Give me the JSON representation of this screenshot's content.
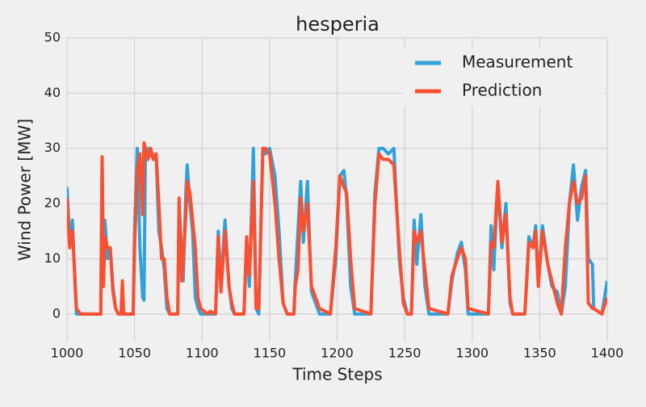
{
  "chart_data": {
    "type": "line",
    "title": "hesperia",
    "x_label": "Time Steps",
    "y_label": "Wind Power [MW]",
    "x": [
      1000,
      1002,
      1004,
      1006,
      1007,
      1010,
      1025,
      1026,
      1027,
      1028,
      1030,
      1032,
      1034,
      1036,
      1038,
      1040,
      1041,
      1042,
      1049,
      1050,
      1052,
      1054,
      1056,
      1057,
      1058,
      1060,
      1062,
      1064,
      1066,
      1068,
      1070,
      1072,
      1074,
      1076,
      1082,
      1083,
      1085,
      1086,
      1088,
      1089,
      1091,
      1093,
      1095,
      1097,
      1099,
      1104,
      1106,
      1110,
      1112,
      1114,
      1117,
      1120,
      1122,
      1124,
      1131,
      1133,
      1135,
      1138,
      1140,
      1142,
      1145,
      1147,
      1150,
      1154,
      1157,
      1160,
      1163,
      1168,
      1169,
      1171,
      1173,
      1175,
      1178,
      1181,
      1184,
      1187,
      1195,
      1199,
      1202,
      1205,
      1207,
      1210,
      1213,
      1225,
      1228,
      1231,
      1234,
      1238,
      1242,
      1246,
      1249,
      1252,
      1255,
      1257,
      1259,
      1262,
      1265,
      1268,
      1282,
      1285,
      1289,
      1292,
      1295,
      1297,
      1312,
      1314,
      1316,
      1319,
      1322,
      1325,
      1328,
      1330,
      1339,
      1342,
      1345,
      1347,
      1349,
      1352,
      1356,
      1359,
      1363,
      1366,
      1369,
      1372,
      1375,
      1378,
      1381,
      1384,
      1386,
      1389,
      1390,
      1396,
      1400
    ],
    "series": [
      {
        "name": "Measurement",
        "color": "#30a2da",
        "values": [
          23,
          13,
          17,
          5,
          0,
          0,
          0,
          28,
          6,
          17,
          10,
          12,
          5,
          1,
          0,
          0,
          0,
          0,
          0,
          15,
          30,
          12,
          3,
          2.5,
          28,
          30,
          29,
          28,
          29,
          15,
          12,
          8,
          1,
          0,
          0,
          20,
          10,
          6,
          22,
          27,
          20,
          15,
          3,
          1,
          0,
          0,
          0,
          0,
          15,
          5,
          17,
          5,
          1,
          0,
          0,
          13,
          5,
          30,
          1,
          0,
          30,
          29,
          30,
          25,
          15,
          2,
          0,
          0,
          6,
          15,
          24,
          13,
          24,
          4,
          2,
          0,
          0,
          10,
          25,
          26,
          21,
          5,
          0,
          0,
          22,
          30,
          30,
          29,
          30,
          10,
          3,
          0,
          0,
          17,
          9,
          18,
          5,
          0,
          0,
          6,
          11,
          13,
          8,
          0,
          0,
          16,
          8,
          24,
          12,
          20,
          2,
          0,
          0,
          14,
          12,
          16,
          6,
          16,
          9,
          5,
          4,
          0,
          5,
          20,
          27,
          17,
          23,
          26,
          10,
          9,
          1,
          0,
          6
        ]
      },
      {
        "name": "Prediction",
        "color": "#fc4f30",
        "values": [
          21,
          12,
          15,
          6,
          1,
          0,
          0,
          28.5,
          5,
          14,
          12,
          12,
          4,
          1,
          0,
          0,
          6,
          0,
          0,
          12,
          26,
          29,
          18,
          31,
          30,
          28,
          30,
          28,
          29,
          20,
          10,
          10,
          3,
          0,
          0,
          21,
          6,
          10,
          18,
          24,
          22,
          17,
          12,
          3,
          1,
          0,
          0.5,
          0,
          14,
          4,
          15,
          5,
          2,
          0,
          0,
          14,
          7,
          24,
          1,
          1,
          30,
          30,
          29,
          20,
          10,
          2,
          0,
          0,
          5,
          8,
          21,
          15,
          20,
          5,
          3,
          1,
          0,
          12,
          25,
          23,
          22,
          10,
          1,
          0,
          20,
          29,
          28,
          28,
          27,
          12,
          2,
          0,
          0,
          15,
          13,
          15,
          8,
          1,
          0,
          7,
          10,
          12,
          10,
          1,
          0,
          13,
          12,
          24,
          13,
          18,
          3,
          0,
          0,
          13,
          12,
          15,
          5,
          15,
          9,
          6,
          2,
          0,
          12,
          20,
          24,
          20,
          21,
          25,
          2,
          1,
          1,
          0,
          3
        ]
      }
    ],
    "xlim": [
      1000,
      1400
    ],
    "xticks": [
      1000,
      1050,
      1100,
      1150,
      1200,
      1250,
      1300,
      1350,
      1400
    ],
    "ylim": [
      -5,
      50
    ],
    "yticks": [
      0,
      10,
      20,
      30,
      40,
      50
    ],
    "grid": true,
    "legend": "upper right"
  }
}
